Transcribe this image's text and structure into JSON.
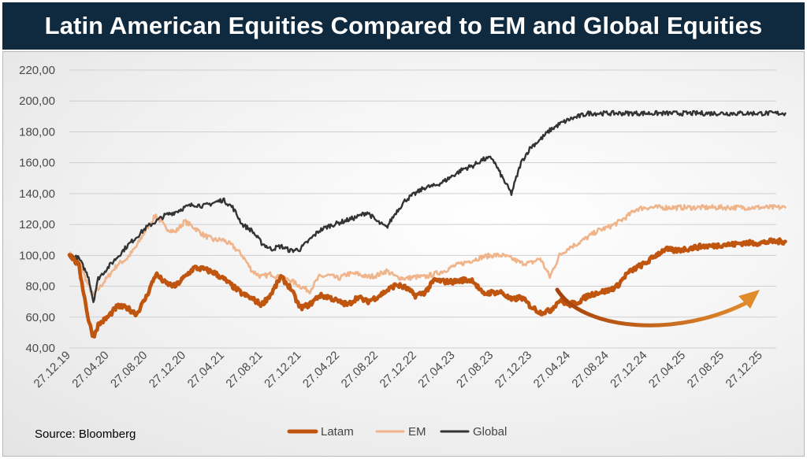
{
  "header": {
    "title": "Latin American Equities Compared to EM and Global Equities"
  },
  "source": "Source: Bloomberg",
  "colors": {
    "title_bg": "#0f2a3f",
    "latam": "#c0550f",
    "em": "#f0b48a",
    "global": "#333333",
    "arrow": "#c2621a"
  },
  "chart_data": {
    "type": "line",
    "title": "Latin American Equities Compared to EM and Global Equities",
    "xlabel": "",
    "ylabel": "",
    "ylim": [
      40,
      220
    ],
    "yticks": [
      "40,00",
      "60,00",
      "80,00",
      "100,00",
      "120,00",
      "140,00",
      "160,00",
      "180,00",
      "200,00",
      "220,00"
    ],
    "xticks": [
      "27.12.19",
      "27.04.20",
      "27.08.20",
      "27.12.20",
      "27.04.21",
      "27.08.21",
      "27.12.21",
      "27.04.22",
      "27.08.22",
      "27.12.22",
      "27.04.23",
      "27.08.23",
      "27.12.23",
      "27.04.24",
      "27.08.24",
      "27.12.24",
      "27.04.25",
      "27.08.25",
      "27.12.25"
    ],
    "grid": "horizontal",
    "legend_position": "bottom-center",
    "x_months_since_start": [
      0,
      1,
      2,
      2.5,
      3,
      4,
      5,
      6,
      7,
      8,
      9,
      10,
      11,
      12,
      13,
      14,
      15,
      16,
      17,
      18,
      19,
      20,
      21,
      22,
      23,
      24,
      25,
      26,
      27,
      28,
      29,
      30,
      31,
      32,
      33,
      34,
      35,
      36,
      37,
      38,
      39,
      40,
      41,
      42,
      43,
      44,
      45,
      46,
      47,
      48,
      49,
      50,
      51,
      52,
      53,
      54,
      55,
      56,
      57,
      58,
      59,
      60,
      61,
      62,
      63,
      64,
      65,
      66,
      67,
      68,
      69,
      70,
      71,
      72,
      73,
      74.5
    ],
    "series": [
      {
        "name": "Latam",
        "values": [
          101,
          93,
          58,
          47,
          55,
          60,
          67,
          66,
          62,
          73,
          88,
          82,
          80,
          86,
          92,
          91,
          89,
          85,
          80,
          75,
          72,
          68,
          75,
          86,
          79,
          66,
          68,
          74,
          73,
          70,
          68,
          73,
          70,
          73,
          77,
          81,
          79,
          74,
          76,
          84,
          83,
          83,
          84,
          84,
          75,
          76,
          76,
          71,
          73,
          67,
          63,
          64,
          71,
          68,
          70,
          74,
          76,
          77,
          80,
          88,
          92,
          95,
          100,
          104,
          103,
          104,
          105,
          106,
          106,
          107,
          107,
          108,
          108,
          108,
          109,
          109
        ]
      },
      {
        "name": "EM",
        "values": [
          101,
          96,
          80,
          74,
          78,
          86,
          94,
          98,
          106,
          117,
          126,
          118,
          115,
          122,
          118,
          113,
          110,
          110,
          106,
          100,
          90,
          86,
          88,
          85,
          84,
          80,
          77,
          86,
          87,
          85,
          88,
          88,
          86,
          87,
          90,
          86,
          85,
          86,
          86,
          88,
          90,
          93,
          95,
          97,
          99,
          100,
          100,
          98,
          95,
          95,
          98,
          86,
          100,
          105,
          108,
          112,
          116,
          118,
          121,
          125,
          130,
          131,
          131,
          131,
          131,
          131,
          131,
          131,
          131,
          131,
          131,
          131,
          131,
          131,
          131,
          131
        ]
      },
      {
        "name": "Global",
        "values": [
          100,
          98,
          86,
          70,
          85,
          92,
          99,
          106,
          112,
          118,
          122,
          126,
          128,
          131,
          133,
          132,
          134,
          136,
          131,
          120,
          116,
          108,
          104,
          106,
          103,
          104,
          110,
          116,
          119,
          121,
          123,
          125,
          128,
          122,
          118,
          128,
          136,
          140,
          144,
          145,
          148,
          152,
          156,
          158,
          162,
          163,
          151,
          140,
          160,
          170,
          175,
          181,
          185,
          188,
          190,
          192,
          192,
          192,
          192,
          192,
          192,
          192,
          192,
          192,
          192,
          192,
          192,
          192,
          192,
          192,
          192,
          192,
          192,
          192,
          192,
          192
        ]
      }
    ],
    "legend": [
      "Latam",
      "EM",
      "Global"
    ]
  }
}
